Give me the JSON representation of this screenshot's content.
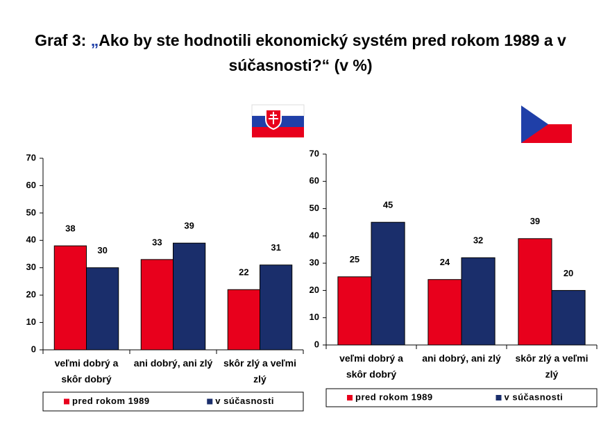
{
  "title": [
    "Graf 3: ",
    "„",
    "Ako by ste hodnotili ekonomický systém pred rokom 1989 a v súčasnosti?“ (v %)"
  ],
  "chart_data": [
    {
      "type": "bar",
      "categories": [
        "veľmi dobrý a skôr dobrý",
        "ani dobrý, ani zlý",
        "skôr zlý a veľmi zlý"
      ],
      "series": [
        {
          "name": "pred rokom 1989",
          "color": "#e8001c",
          "values": [
            38,
            33,
            22
          ]
        },
        {
          "name": "v súčasnosti",
          "color": "#1a2e6b",
          "values": [
            30,
            39,
            31
          ]
        }
      ],
      "ylim": [
        0,
        70
      ],
      "yticks": [
        0,
        10,
        20,
        30,
        40,
        50,
        60,
        70
      ],
      "legend": "bottom"
    },
    {
      "type": "bar",
      "categories": [
        "veľmi dobrý a skôr dobrý",
        "ani dobrý, ani zlý",
        "skôr zlý a veľmi zlý"
      ],
      "series": [
        {
          "name": "pred rokom 1989",
          "color": "#e8001c",
          "values": [
            25,
            24,
            39
          ]
        },
        {
          "name": "v súčasnosti",
          "color": "#1a2e6b",
          "values": [
            45,
            32,
            20
          ]
        }
      ],
      "ylim": [
        0,
        70
      ],
      "yticks": [
        0,
        10,
        20,
        30,
        40,
        50,
        60,
        70
      ],
      "legend": "bottom"
    }
  ]
}
